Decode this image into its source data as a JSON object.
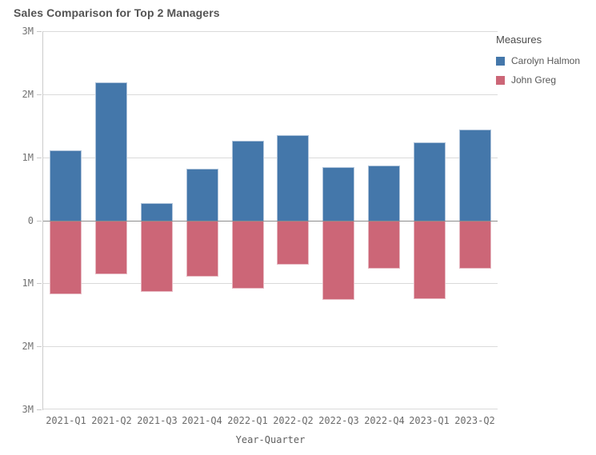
{
  "title": "Sales Comparison for Top 2 Managers",
  "chart_data": {
    "type": "bar",
    "subtype": "diverging-vertical",
    "title": "Sales Comparison for Top 2 Managers",
    "xlabel": "Year-Quarter",
    "ylabel": "",
    "unit": "M",
    "ylim_m": [
      -3,
      3
    ],
    "grid": true,
    "legend_position": "right",
    "legend_title": "Measures",
    "y_axis_ticks": [
      "3M",
      "2M",
      "1M",
      "0",
      "1M",
      "2M",
      "3M"
    ],
    "categories": [
      "2021-Q1",
      "2021-Q2",
      "2021-Q3",
      "2021-Q4",
      "2022-Q1",
      "2022-Q2",
      "2022-Q3",
      "2022-Q4",
      "2023-Q1",
      "2023-Q2"
    ],
    "series": [
      {
        "name": "Carolyn Halmon",
        "color": "#4477aa",
        "direction": "up",
        "values_m": [
          1.12,
          2.2,
          0.28,
          0.82,
          1.27,
          1.36,
          0.85,
          0.87,
          1.24,
          1.45
        ]
      },
      {
        "name": "John Greg",
        "color": "#cc6677",
        "direction": "down",
        "values_m": [
          1.16,
          0.84,
          1.11,
          0.88,
          1.06,
          0.68,
          1.24,
          0.75,
          1.23,
          0.75
        ]
      }
    ],
    "colors": {
      "gridline": "#dadada",
      "zero_line": "#8c8c8c",
      "axis_line": "#cccccc",
      "tick_label": "#737373",
      "title_text": "#545454"
    }
  }
}
